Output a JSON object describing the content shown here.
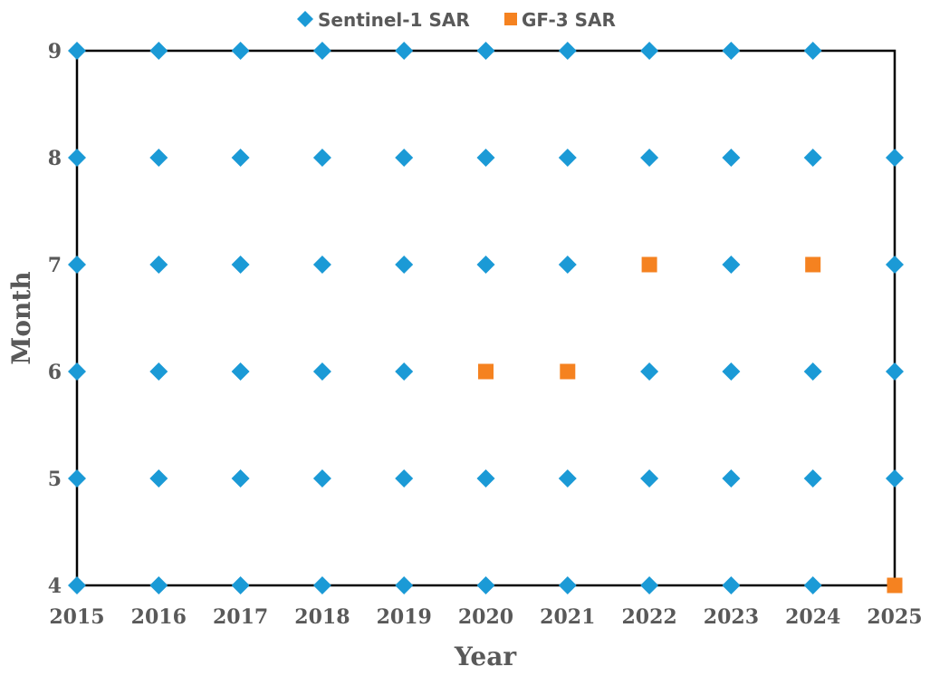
{
  "chart_data": {
    "type": "scatter",
    "xlabel": "Year",
    "ylabel": "Month",
    "xlim": [
      2015,
      2025
    ],
    "ylim": [
      4,
      9
    ],
    "xticks": [
      "2015",
      "2016",
      "2017",
      "2018",
      "2019",
      "2020",
      "2021",
      "2022",
      "2023",
      "2024",
      "2025"
    ],
    "yticks": [
      "4",
      "5",
      "6",
      "7",
      "8",
      "9"
    ],
    "grid": false,
    "legend_position": "top",
    "series": [
      {
        "name": "Sentinel-1 SAR",
        "marker": "diamond",
        "color": "#1B9AD6",
        "points": [
          [
            2015,
            4
          ],
          [
            2015,
            5
          ],
          [
            2015,
            6
          ],
          [
            2015,
            7
          ],
          [
            2015,
            8
          ],
          [
            2015,
            9
          ],
          [
            2016,
            4
          ],
          [
            2016,
            5
          ],
          [
            2016,
            6
          ],
          [
            2016,
            7
          ],
          [
            2016,
            8
          ],
          [
            2016,
            9
          ],
          [
            2017,
            4
          ],
          [
            2017,
            5
          ],
          [
            2017,
            6
          ],
          [
            2017,
            7
          ],
          [
            2017,
            8
          ],
          [
            2017,
            9
          ],
          [
            2018,
            4
          ],
          [
            2018,
            5
          ],
          [
            2018,
            6
          ],
          [
            2018,
            7
          ],
          [
            2018,
            8
          ],
          [
            2018,
            9
          ],
          [
            2019,
            4
          ],
          [
            2019,
            5
          ],
          [
            2019,
            6
          ],
          [
            2019,
            7
          ],
          [
            2019,
            8
          ],
          [
            2019,
            9
          ],
          [
            2020,
            4
          ],
          [
            2020,
            5
          ],
          [
            2020,
            7
          ],
          [
            2020,
            8
          ],
          [
            2020,
            9
          ],
          [
            2021,
            4
          ],
          [
            2021,
            5
          ],
          [
            2021,
            7
          ],
          [
            2021,
            8
          ],
          [
            2021,
            9
          ],
          [
            2022,
            4
          ],
          [
            2022,
            5
          ],
          [
            2022,
            6
          ],
          [
            2022,
            8
          ],
          [
            2022,
            9
          ],
          [
            2023,
            4
          ],
          [
            2023,
            5
          ],
          [
            2023,
            6
          ],
          [
            2023,
            7
          ],
          [
            2023,
            8
          ],
          [
            2023,
            9
          ],
          [
            2024,
            4
          ],
          [
            2024,
            5
          ],
          [
            2024,
            6
          ],
          [
            2024,
            8
          ],
          [
            2024,
            9
          ],
          [
            2025,
            5
          ],
          [
            2025,
            6
          ],
          [
            2025,
            7
          ],
          [
            2025,
            8
          ]
        ]
      },
      {
        "name": "GF-3 SAR",
        "marker": "square",
        "color": "#F58220",
        "points": [
          [
            2020,
            6
          ],
          [
            2021,
            6
          ],
          [
            2022,
            7
          ],
          [
            2024,
            7
          ],
          [
            2025,
            4
          ]
        ]
      }
    ]
  }
}
